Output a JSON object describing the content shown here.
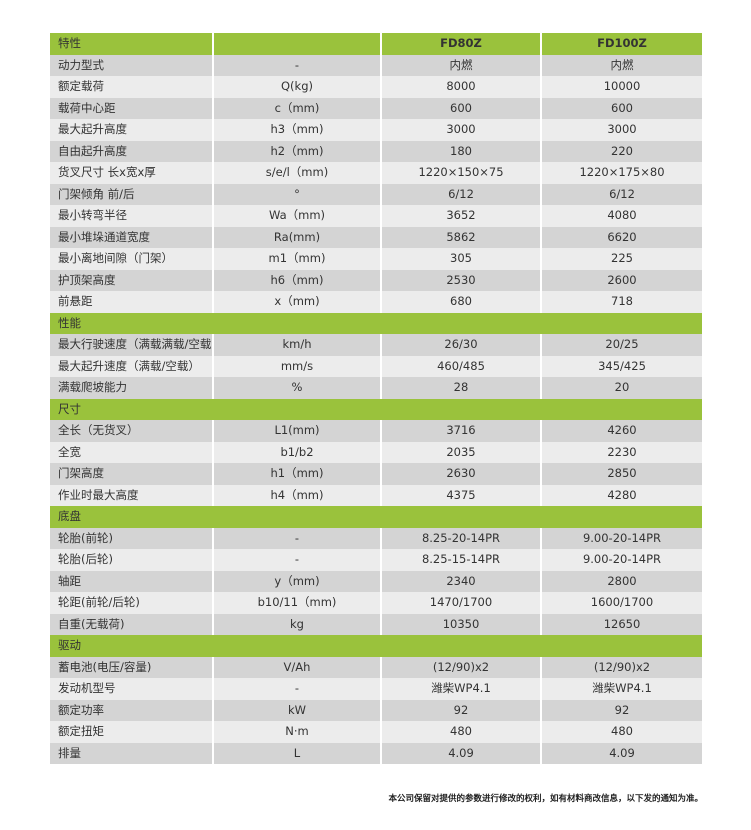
{
  "header": {
    "label": "特性",
    "models": [
      "FD80Z",
      "FD100Z"
    ]
  },
  "sections": [
    {
      "title": null,
      "rows": [
        [
          "动力型式",
          "-",
          "内燃",
          "内燃"
        ],
        [
          "额定载荷",
          "Q(kg)",
          "8000",
          "10000"
        ],
        [
          "载荷中心距",
          "c（mm)",
          "600",
          "600"
        ],
        [
          "最大起升高度",
          "h3（mm)",
          "3000",
          "3000"
        ],
        [
          "自由起升高度",
          "h2（mm)",
          "180",
          "220"
        ],
        [
          "货叉尺寸 长x宽x厚",
          "s/e/l（mm)",
          "1220×150×75",
          "1220×175×80"
        ],
        [
          "门架倾角 前/后",
          "°",
          "6/12",
          "6/12"
        ],
        [
          "最小转弯半径",
          "Wa（mm)",
          "3652",
          "4080"
        ],
        [
          "最小堆垛通道宽度",
          "Ra(mm)",
          "5862",
          "6620"
        ],
        [
          "最小离地间隙（门架）",
          "m1（mm)",
          "305",
          "225"
        ],
        [
          "护顶架高度",
          "h6（mm)",
          "2530",
          "2600"
        ],
        [
          "前悬距",
          "x（mm)",
          "680",
          "718"
        ]
      ]
    },
    {
      "title": "性能",
      "rows": [
        [
          "最大行驶速度（满载满载/空载）",
          "km/h",
          "26/30",
          "20/25"
        ],
        [
          "最大起升速度（满载/空载）",
          "mm/s",
          "460/485",
          "345/425"
        ],
        [
          "满载爬坡能力",
          "%",
          "28",
          "20"
        ]
      ]
    },
    {
      "title": "尺寸",
      "rows": [
        [
          "全长（无货叉）",
          "L1(mm)",
          "3716",
          "4260"
        ],
        [
          "全宽",
          "b1/b2",
          "2035",
          "2230"
        ],
        [
          "门架高度",
          "h1（mm)",
          "2630",
          "2850"
        ],
        [
          "作业时最大高度",
          "h4（mm)",
          "4375",
          "4280"
        ]
      ]
    },
    {
      "title": "底盘",
      "rows": [
        [
          "轮胎(前轮)",
          "-",
          "8.25-20-14PR",
          "9.00-20-14PR"
        ],
        [
          "轮胎(后轮)",
          "-",
          "8.25-15-14PR",
          "9.00-20-14PR"
        ],
        [
          "轴距",
          "y（mm)",
          "2340",
          "2800"
        ],
        [
          "轮距(前轮/后轮)",
          "b10/11（mm)",
          "1470/1700",
          "1600/1700"
        ],
        [
          "自重(无载荷)",
          "kg",
          "10350",
          "12650"
        ]
      ]
    },
    {
      "title": "驱动",
      "rows": [
        [
          "蓄电池(电压/容量)",
          "V/Ah",
          "(12/90)x2",
          "(12/90)x2"
        ],
        [
          "发动机型号",
          "-",
          "潍柴WP4.1",
          "潍柴WP4.1"
        ],
        [
          "额定功率",
          "kW",
          "92",
          "92"
        ],
        [
          "额定扭矩",
          "N·m",
          "480",
          "480"
        ],
        [
          "排量",
          "L",
          "4.09",
          "4.09"
        ]
      ]
    }
  ],
  "footnote": "本公司保留对提供的参数进行修改的权利，如有材料商改信息，以下发的通知为准。",
  "colors": {
    "accent": "#9ac23c",
    "row_dark": "#d4d4d4",
    "row_light": "#ececec"
  }
}
